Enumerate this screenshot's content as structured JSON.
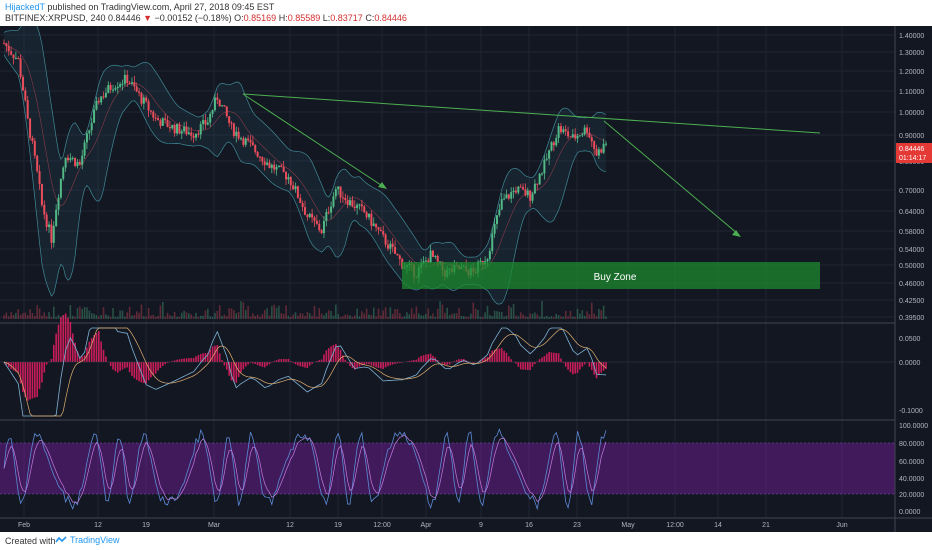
{
  "header": {
    "author": "HijackedT",
    "published": "published on TradingView.com, April 27, 2018 09:45 EST",
    "symbol": "BITFINEX:XRPUSD, 240",
    "last": "0.84446",
    "arrow": "▼",
    "change": "−0.00152 (−0.18%)",
    "o_label": "O:",
    "o_val": "0.85169",
    "h_label": "H:",
    "h_val": "0.85589",
    "l_label": "L:",
    "l_val": "0.83717",
    "c_label": "C:",
    "c_val": "0.84446"
  },
  "price_axis": {
    "ticks": [
      "1.40000",
      "1.30000",
      "1.20000",
      "1.10000",
      "1.00000",
      "0.90000",
      "0.80000",
      "0.70000",
      "0.64000",
      "0.58000",
      "0.54000",
      "0.50000",
      "0.46000",
      "0.42500",
      "0.39500"
    ],
    "last_price": "0.84446",
    "countdown": "01:14:17"
  },
  "macd_axis": {
    "ticks": [
      "0.0500",
      "0.0000",
      "-0.1000"
    ]
  },
  "stoch_axis": {
    "ticks": [
      "100.0000",
      "80.0000",
      "60.0000",
      "40.0000",
      "20.0000",
      "0.0000"
    ]
  },
  "time_axis": {
    "labels": [
      "Feb",
      "12",
      "19",
      "Mar",
      "12",
      "19",
      "12:00",
      "Apr",
      "9",
      "16",
      "23",
      "May",
      "12:00",
      "14",
      "21",
      "Jun"
    ]
  },
  "annotations": {
    "buy_zone": "Buy Zone"
  },
  "footer": {
    "created_with": "Created with",
    "brand": "TradingView"
  },
  "colors": {
    "background": "#131722",
    "grid": "#1f2433",
    "bull": "#53b987",
    "bear": "#eb4d5c",
    "trendline": "#4caf50",
    "buy_zone": "#1e8a2e",
    "stoch_band": "#7b1fa2",
    "macd_hist": "#e91e63",
    "last_price_label": "#e53935"
  },
  "chart_data": {
    "type": "candlestick",
    "x_labels": [
      "Feb",
      "12",
      "19",
      "Mar",
      "12",
      "19",
      "12:00",
      "Apr",
      "9",
      "16",
      "23",
      "May",
      "12:00",
      "14",
      "21",
      "Jun"
    ],
    "close_approx": [
      1.35,
      0.85,
      1.15,
      1.05,
      0.98,
      0.9,
      1.02,
      0.85,
      0.68,
      0.55,
      0.52,
      0.46,
      0.48,
      0.8,
      0.92,
      0.84
    ],
    "ylim": [
      0.39,
      1.42
    ],
    "y_scale": "log",
    "annotations": [
      {
        "type": "trendline",
        "from_price": 1.09,
        "to_price": 0.91
      },
      {
        "type": "arrow",
        "from_price": 1.09,
        "to_price": 0.75
      },
      {
        "type": "arrow",
        "from_price": 0.95,
        "to_price": 0.56
      },
      {
        "type": "zone",
        "label": "Buy Zone",
        "price_from": 0.46,
        "price_to": 0.515
      }
    ],
    "indicators": [
      "bollinger_bands",
      "volume",
      "macd",
      "stochastic"
    ]
  }
}
